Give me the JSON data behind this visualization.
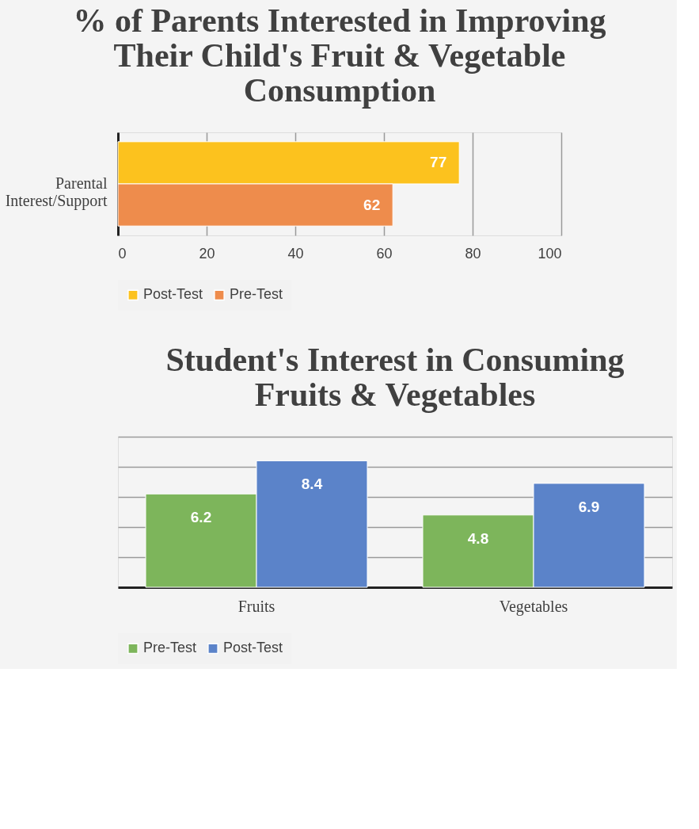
{
  "chart_data": [
    {
      "type": "bar",
      "title": "% of Parents Interested in Improving Their Child's Fruit & Vegetable Consumption",
      "orientation": "horizontal",
      "categories": [
        "Parental Interest/Support"
      ],
      "series": [
        {
          "name": "Post-Test",
          "color": "#fcc21e",
          "values": [
            77
          ]
        },
        {
          "name": "Pre-Test",
          "color": "#ee8c4c",
          "values": [
            62
          ]
        }
      ],
      "xlim": [
        0,
        100
      ],
      "xticks": [
        0,
        20,
        40,
        60,
        80,
        100
      ],
      "grid": "x",
      "legend": "bottom",
      "data_labels": true
    },
    {
      "type": "bar",
      "title": "Student's Interest in Consuming Fruits & Vegetables",
      "categories": [
        "Fruits",
        "Vegetables"
      ],
      "series": [
        {
          "name": "Pre-Test",
          "color": "#7db55b",
          "values": [
            6.2,
            4.8
          ]
        },
        {
          "name": "Post-Test",
          "color": "#5b83c9",
          "values": [
            8.4,
            6.9
          ]
        }
      ],
      "ylim": [
        0,
        10
      ],
      "yticks": [
        0,
        2,
        4,
        6,
        8,
        10
      ],
      "grid": "y",
      "tick_labels": "x",
      "legend": "bottom",
      "data_labels": true
    }
  ]
}
